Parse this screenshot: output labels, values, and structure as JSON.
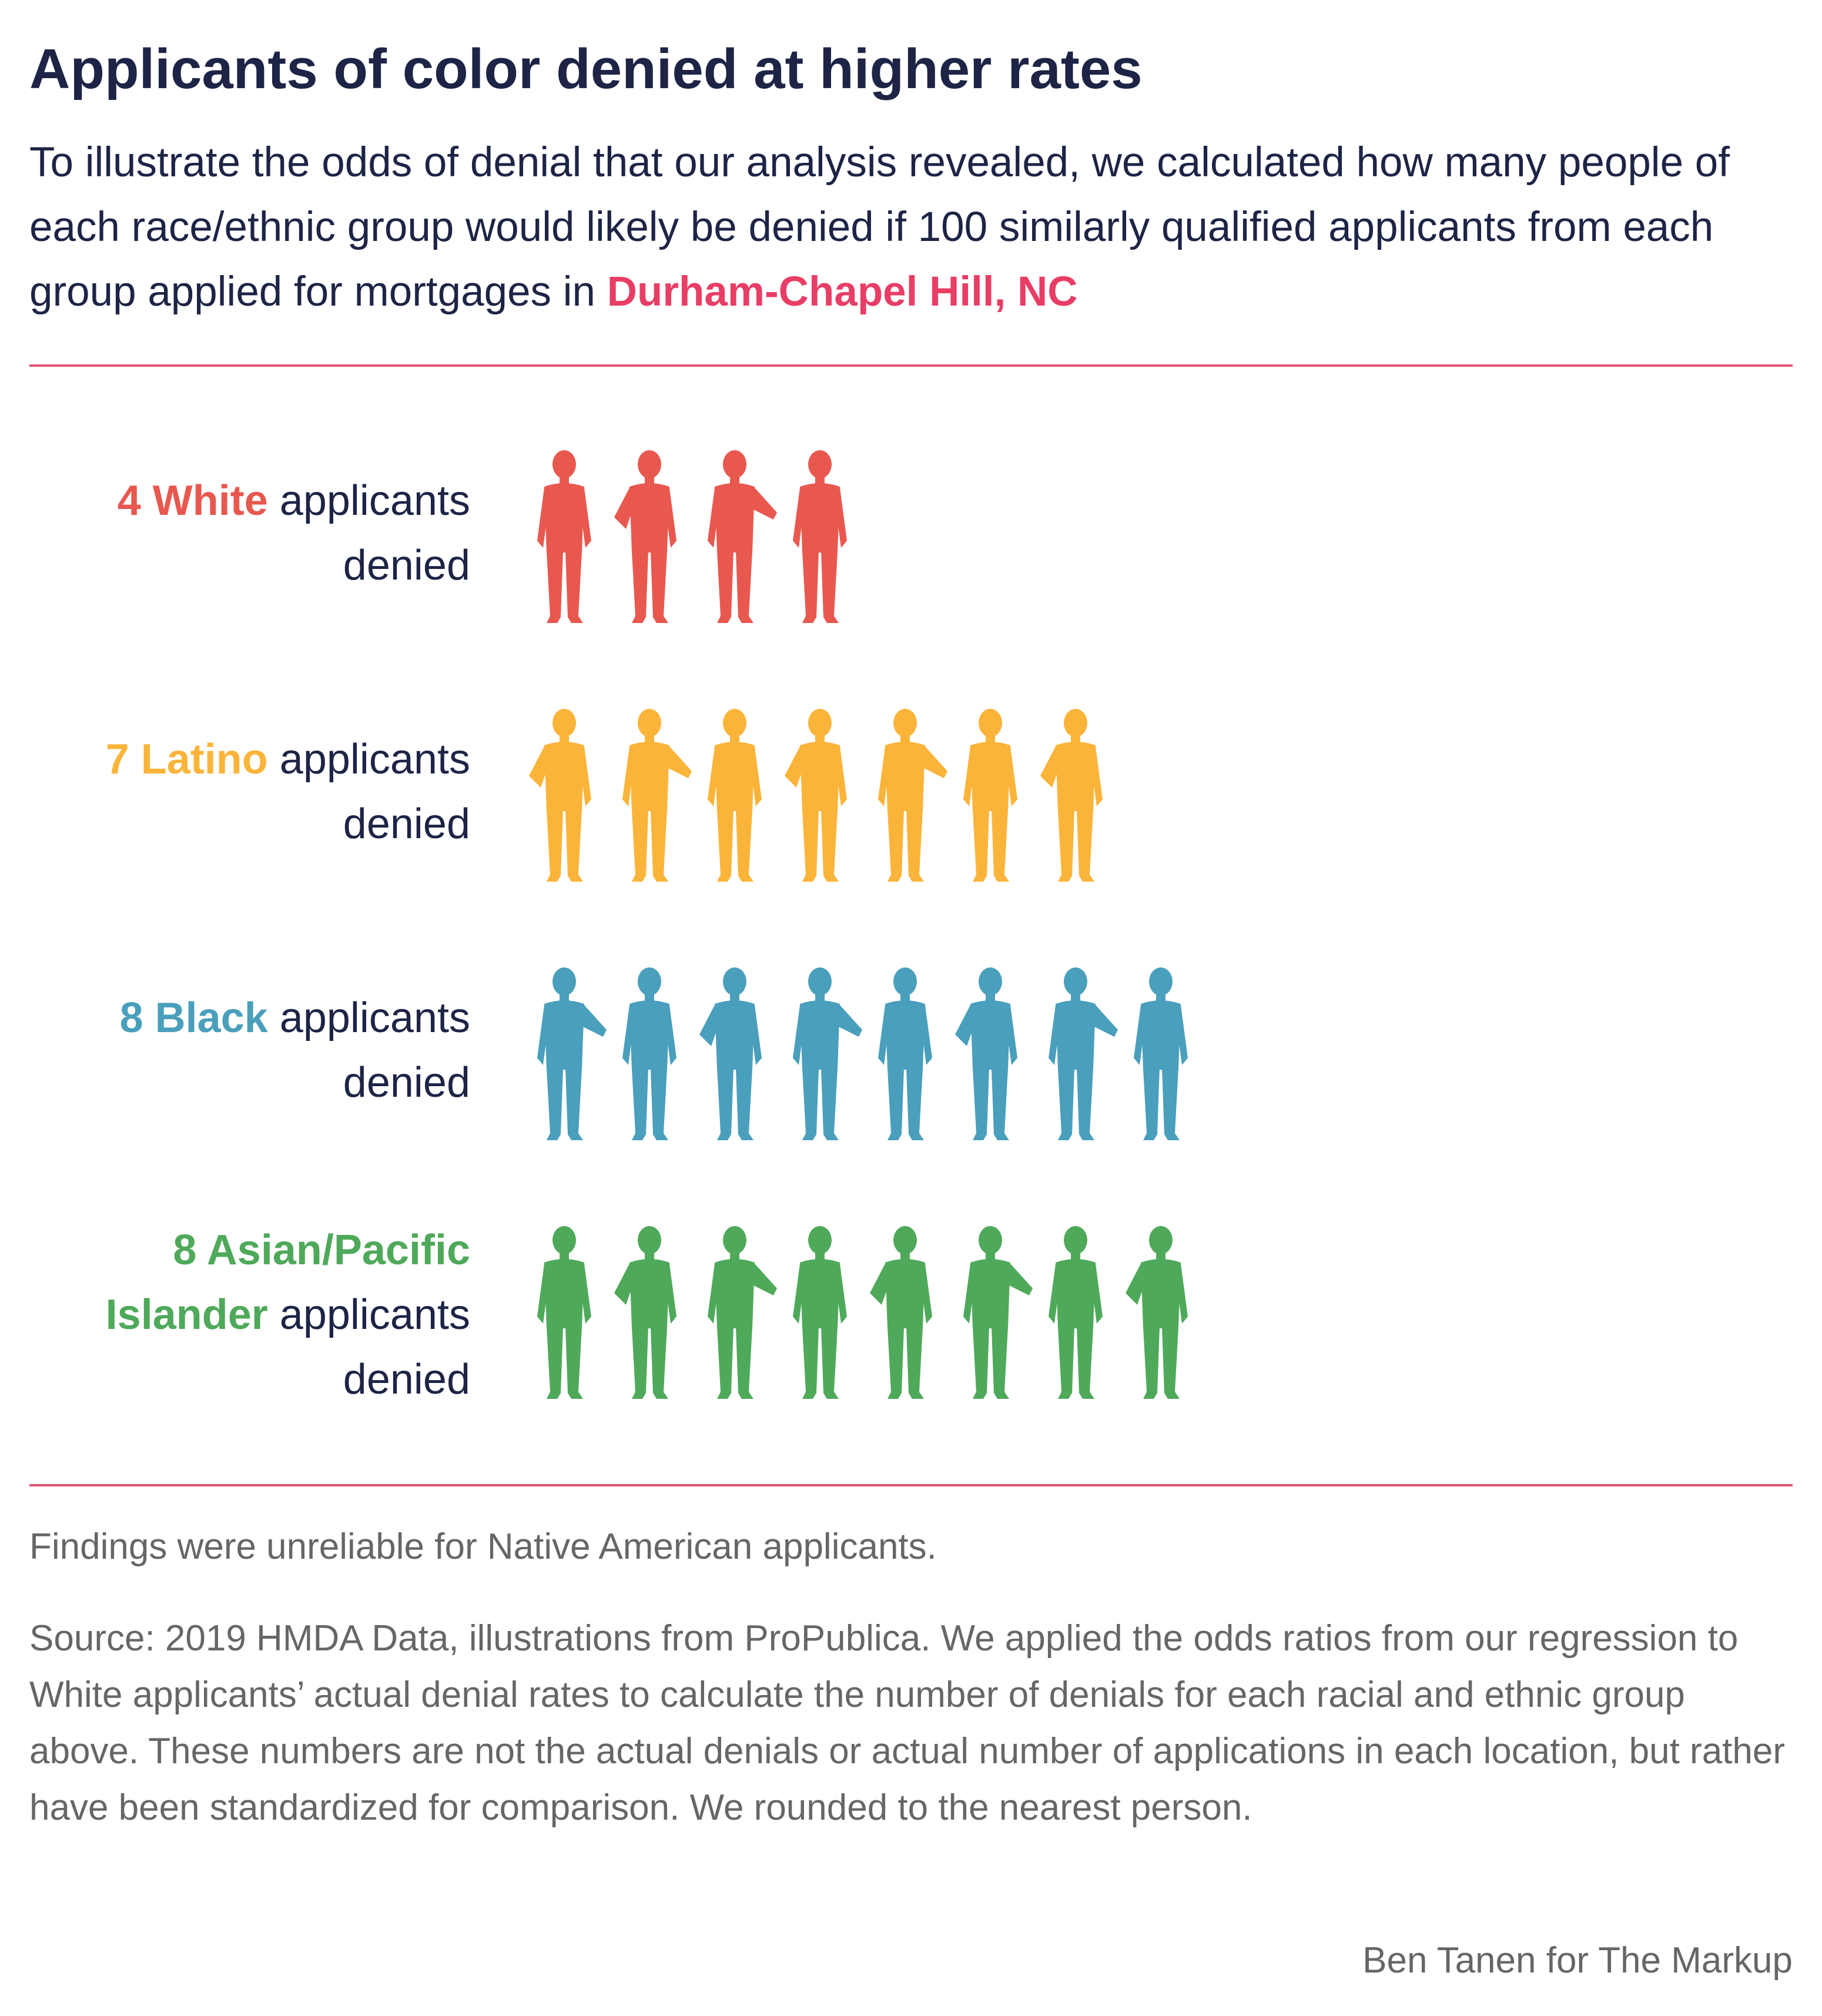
{
  "header": {
    "title": "Applicants of color denied at higher rates",
    "subtitle_prefix": "To illustrate the odds of denial that our analysis revealed, we calculated how many people of each race/ethnic group would likely be denied if 100 similarly qualified applicants from each group applied for mortgages in",
    "location": "Durham-Chapel Hill, NC"
  },
  "chart_data": {
    "type": "pictogram",
    "unit": "applicants denied per 100 similarly qualified applicants",
    "rows": [
      {
        "count_label": "4",
        "group": "White",
        "suffix_1": "applicants",
        "suffix_2": "denied",
        "value": 4,
        "color": "#e8584f"
      },
      {
        "count_label": "7",
        "group": "Latino",
        "suffix_1": "applicants",
        "suffix_2": "denied",
        "value": 7,
        "color": "#fbb43a"
      },
      {
        "count_label": "8",
        "group": "Black",
        "suffix_1": "applicants",
        "suffix_2": "denied",
        "value": 8,
        "color": "#4a9fbc"
      },
      {
        "count_label": "8",
        "group": "Asian/Pacific Islander",
        "group_line_1": "Asian/Pacific",
        "group_line_2": "Islander",
        "suffix_1": "applicants",
        "suffix_2": "denied",
        "value": 8,
        "color": "#4fa95a"
      }
    ]
  },
  "footer": {
    "note": "Findings were unreliable for Native American applicants.",
    "source": "Source: 2019 HMDA Data, illustrations from ProPublica. We applied the odds ratios from our regression to White applicants’ actual denial rates to calculate the number of denials for each racial and ethnic group above. These numbers are not the actual denials or actual number of applications in each location, but rather have been standardized for comparison. We rounded to the nearest person.",
    "credit": "Ben Tanen for The Markup"
  }
}
